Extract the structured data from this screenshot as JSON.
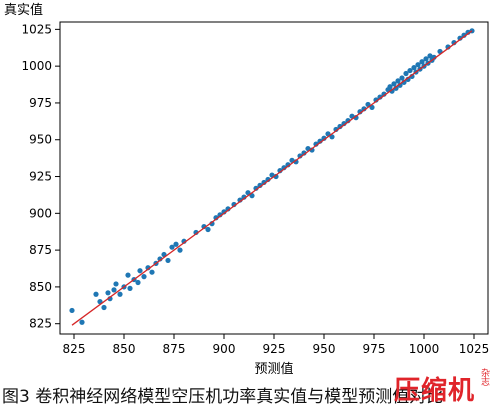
{
  "chart_data": {
    "type": "scatter",
    "ylabel": "真实值",
    "xlabel": "预测值",
    "xlim": [
      818,
      1032
    ],
    "ylim": [
      818,
      1030
    ],
    "xticks": [
      825,
      850,
      875,
      900,
      925,
      950,
      975,
      1000,
      1025
    ],
    "yticks": [
      825,
      850,
      875,
      900,
      925,
      950,
      975,
      1000,
      1025
    ],
    "grid": false,
    "legend": "none",
    "point_color": "#1f77b4",
    "line_color": "#d62728",
    "series": [
      {
        "kind": "points",
        "x": [
          824,
          829,
          836,
          838,
          840,
          842,
          843,
          845,
          846,
          848,
          850,
          852,
          853,
          855,
          857,
          858,
          860,
          862,
          864,
          866,
          868,
          870,
          872,
          874,
          876,
          878,
          880,
          886,
          890,
          892,
          894,
          896,
          898,
          900,
          902,
          905,
          908,
          910,
          912,
          914,
          916,
          918,
          920,
          922,
          924,
          926,
          928,
          930,
          932,
          934,
          936,
          938,
          940,
          942,
          944,
          946,
          948,
          950,
          952,
          954,
          956,
          958,
          960,
          962,
          964,
          966,
          968,
          970,
          972,
          974,
          976,
          978,
          980,
          982,
          983,
          984,
          985,
          986,
          987,
          988,
          989,
          990,
          991,
          992,
          993,
          994,
          995,
          996,
          997,
          998,
          999,
          1000,
          1001,
          1002,
          1003,
          1004,
          1005,
          1008,
          1012,
          1015,
          1018,
          1020,
          1022,
          1024
        ],
        "y": [
          834,
          826,
          845,
          840,
          836,
          846,
          842,
          848,
          852,
          845,
          850,
          858,
          849,
          855,
          853,
          861,
          857,
          863,
          860,
          866,
          869,
          872,
          868,
          877,
          879,
          875,
          881,
          887,
          891,
          889,
          893,
          897,
          899,
          901,
          903,
          906,
          909,
          911,
          914,
          912,
          917,
          919,
          921,
          923,
          926,
          925,
          929,
          931,
          933,
          936,
          935,
          939,
          941,
          944,
          943,
          947,
          949,
          951,
          954,
          952,
          957,
          959,
          961,
          963,
          966,
          965,
          969,
          971,
          974,
          972,
          977,
          979,
          981,
          984,
          986,
          983,
          988,
          985,
          990,
          987,
          992,
          989,
          995,
          991,
          997,
          993,
          999,
          996,
          1001,
          998,
          1003,
          1000,
          1005,
          1002,
          1007,
          1004,
          1006,
          1010,
          1013,
          1016,
          1019,
          1021,
          1023,
          1024
        ]
      },
      {
        "kind": "line",
        "x": [
          824,
          1024
        ],
        "y": [
          824,
          1024
        ]
      }
    ]
  },
  "caption": {
    "text": "图3 卷积神经网络模型空压机功率真实值与模型预测值对比"
  },
  "watermark": {
    "main": "压缩机",
    "sub": "杂志",
    "registered": "®"
  }
}
